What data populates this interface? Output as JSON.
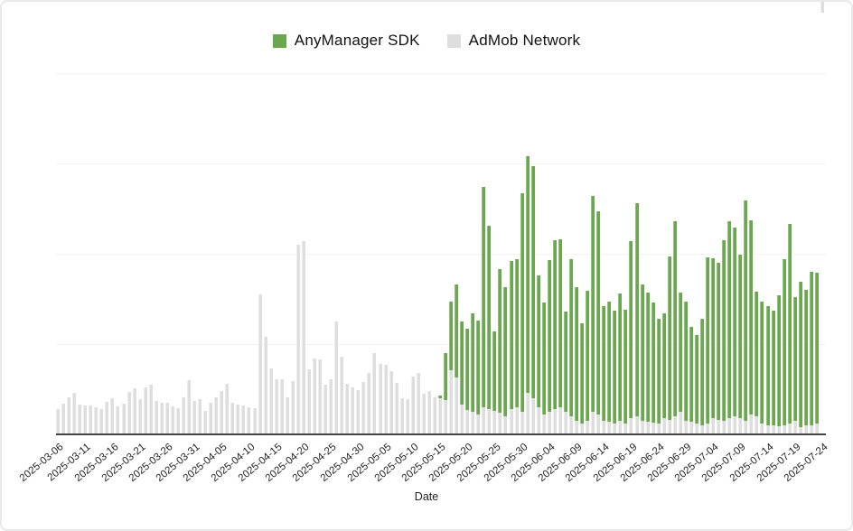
{
  "legend": {
    "items": [
      {
        "label": "AnyManager SDK",
        "color": "#6aa84f"
      },
      {
        "label": "AdMob Network",
        "color": "#dedede"
      }
    ]
  },
  "x_axis": {
    "title": "Date",
    "tick_labels": [
      "2025-03-06",
      "2025-03-11",
      "2025-03-16",
      "2025-03-21",
      "2025-03-26",
      "2025-03-31",
      "2025-04-05",
      "2025-04-10",
      "2025-04-15",
      "2025-04-20",
      "2025-04-25",
      "2025-04-30",
      "2025-05-05",
      "2025-05-10",
      "2025-05-15",
      "2025-05-20",
      "2025-05-25",
      "2025-05-30",
      "2025-06-04",
      "2025-06-09",
      "2025-06-14",
      "2025-06-19",
      "2025-06-24",
      "2025-06-29",
      "2025-07-04",
      "2025-07-09",
      "2025-07-14",
      "2025-07-19",
      "2025-07-24"
    ],
    "tick_step_days": 5
  },
  "chart_data": {
    "type": "bar",
    "stacked": true,
    "title": "",
    "xlabel": "Date",
    "ylabel": "",
    "grid": true,
    "legend_position": "top-center",
    "y_axis_labels_visible": false,
    "value_units": "relative units (no y-axis labels shown; estimated from bar heights, plot height = 400 units)",
    "ylim": [
      0,
      400
    ],
    "categories": [
      "2025-03-06",
      "2025-03-07",
      "2025-03-08",
      "2025-03-09",
      "2025-03-10",
      "2025-03-11",
      "2025-03-12",
      "2025-03-13",
      "2025-03-14",
      "2025-03-15",
      "2025-03-16",
      "2025-03-17",
      "2025-03-18",
      "2025-03-19",
      "2025-03-20",
      "2025-03-21",
      "2025-03-22",
      "2025-03-23",
      "2025-03-24",
      "2025-03-25",
      "2025-03-26",
      "2025-03-27",
      "2025-03-28",
      "2025-03-29",
      "2025-03-30",
      "2025-03-31",
      "2025-04-01",
      "2025-04-02",
      "2025-04-03",
      "2025-04-04",
      "2025-04-05",
      "2025-04-06",
      "2025-04-07",
      "2025-04-08",
      "2025-04-09",
      "2025-04-10",
      "2025-04-11",
      "2025-04-12",
      "2025-04-13",
      "2025-04-14",
      "2025-04-15",
      "2025-04-16",
      "2025-04-17",
      "2025-04-18",
      "2025-04-19",
      "2025-04-20",
      "2025-04-21",
      "2025-04-22",
      "2025-04-23",
      "2025-04-24",
      "2025-04-25",
      "2025-04-26",
      "2025-04-27",
      "2025-04-28",
      "2025-04-29",
      "2025-04-30",
      "2025-05-01",
      "2025-05-02",
      "2025-05-03",
      "2025-05-04",
      "2025-05-05",
      "2025-05-06",
      "2025-05-07",
      "2025-05-08",
      "2025-05-09",
      "2025-05-10",
      "2025-05-11",
      "2025-05-12",
      "2025-05-13",
      "2025-05-14",
      "2025-05-15",
      "2025-05-16",
      "2025-05-17",
      "2025-05-18",
      "2025-05-19",
      "2025-05-20",
      "2025-05-21",
      "2025-05-22",
      "2025-05-23",
      "2025-05-24",
      "2025-05-25",
      "2025-05-26",
      "2025-05-27",
      "2025-05-28",
      "2025-05-29",
      "2025-05-30",
      "2025-05-31",
      "2025-06-01",
      "2025-06-02",
      "2025-06-03",
      "2025-06-04",
      "2025-06-05",
      "2025-06-06",
      "2025-06-07",
      "2025-06-08",
      "2025-06-09",
      "2025-06-10",
      "2025-06-11",
      "2025-06-12",
      "2025-06-13",
      "2025-06-14",
      "2025-06-15",
      "2025-06-16",
      "2025-06-17",
      "2025-06-18",
      "2025-06-19",
      "2025-06-20",
      "2025-06-21",
      "2025-06-22",
      "2025-06-23",
      "2025-06-24",
      "2025-06-25",
      "2025-06-26",
      "2025-06-27",
      "2025-06-28",
      "2025-06-29",
      "2025-06-30",
      "2025-07-01",
      "2025-07-02",
      "2025-07-03",
      "2025-07-04",
      "2025-07-05",
      "2025-07-06",
      "2025-07-07",
      "2025-07-08",
      "2025-07-09",
      "2025-07-10",
      "2025-07-11",
      "2025-07-12",
      "2025-07-13",
      "2025-07-14",
      "2025-07-15",
      "2025-07-16",
      "2025-07-17",
      "2025-07-18",
      "2025-07-19",
      "2025-07-20",
      "2025-07-21",
      "2025-07-22",
      "2025-07-23",
      "2025-07-24"
    ],
    "series": [
      {
        "name": "AdMob Network",
        "color": "#dedede",
        "values": [
          28,
          34,
          41,
          46,
          33,
          32,
          32,
          30,
          28,
          36,
          40,
          31,
          34,
          47,
          51,
          39,
          52,
          55,
          37,
          35,
          35,
          31,
          29,
          41,
          60,
          37,
          39,
          26,
          35,
          41,
          48,
          56,
          35,
          33,
          32,
          30,
          29,
          155,
          108,
          73,
          61,
          61,
          41,
          59,
          210,
          214,
          72,
          84,
          83,
          55,
          61,
          125,
          86,
          56,
          52,
          49,
          58,
          68,
          90,
          78,
          77,
          70,
          57,
          40,
          39,
          64,
          68,
          45,
          48,
          41,
          40,
          38,
          71,
          63,
          33,
          27,
          25,
          22,
          30,
          28,
          26,
          24,
          20,
          28,
          30,
          25,
          46,
          40,
          30,
          22,
          25,
          28,
          30,
          25,
          20,
          15,
          12,
          15,
          25,
          22,
          15,
          14,
          12,
          15,
          12,
          18,
          20,
          15,
          14,
          13,
          12,
          18,
          16,
          20,
          25,
          15,
          14,
          12,
          10,
          12,
          18,
          16,
          15,
          18,
          20,
          18,
          15,
          22,
          20,
          12,
          10,
          10,
          9,
          10,
          12,
          15,
          8,
          10,
          10,
          12,
          12
        ]
      },
      {
        "name": "AnyManager SDK",
        "color": "#6aa84f",
        "values": [
          0,
          0,
          0,
          0,
          0,
          0,
          0,
          0,
          0,
          0,
          0,
          0,
          0,
          0,
          0,
          0,
          0,
          0,
          0,
          0,
          0,
          0,
          0,
          0,
          0,
          0,
          0,
          0,
          0,
          0,
          0,
          0,
          0,
          0,
          0,
          0,
          0,
          0,
          0,
          0,
          0,
          0,
          0,
          0,
          0,
          0,
          0,
          0,
          0,
          0,
          0,
          0,
          0,
          0,
          0,
          0,
          0,
          0,
          0,
          0,
          0,
          0,
          0,
          0,
          0,
          0,
          0,
          0,
          0,
          0,
          3,
          52,
          76,
          103,
          92,
          90,
          109,
          104,
          244,
          203,
          88,
          159,
          143,
          164,
          164,
          242,
          262,
          257,
          146,
          124,
          168,
          187,
          186,
          111,
          174,
          148,
          111,
          144,
          239,
          225,
          127,
          133,
          125,
          141,
          126,
          196,
          236,
          151,
          143,
          133,
          116,
          116,
          181,
          216,
          132,
          132,
          105,
          98,
          118,
          184,
          177,
          174,
          200,
          218,
          209,
          181,
          244,
          215,
          138,
          135,
          132,
          127,
          145,
          184,
          221,
          137,
          161,
          150,
          170,
          167
        ]
      }
    ]
  }
}
